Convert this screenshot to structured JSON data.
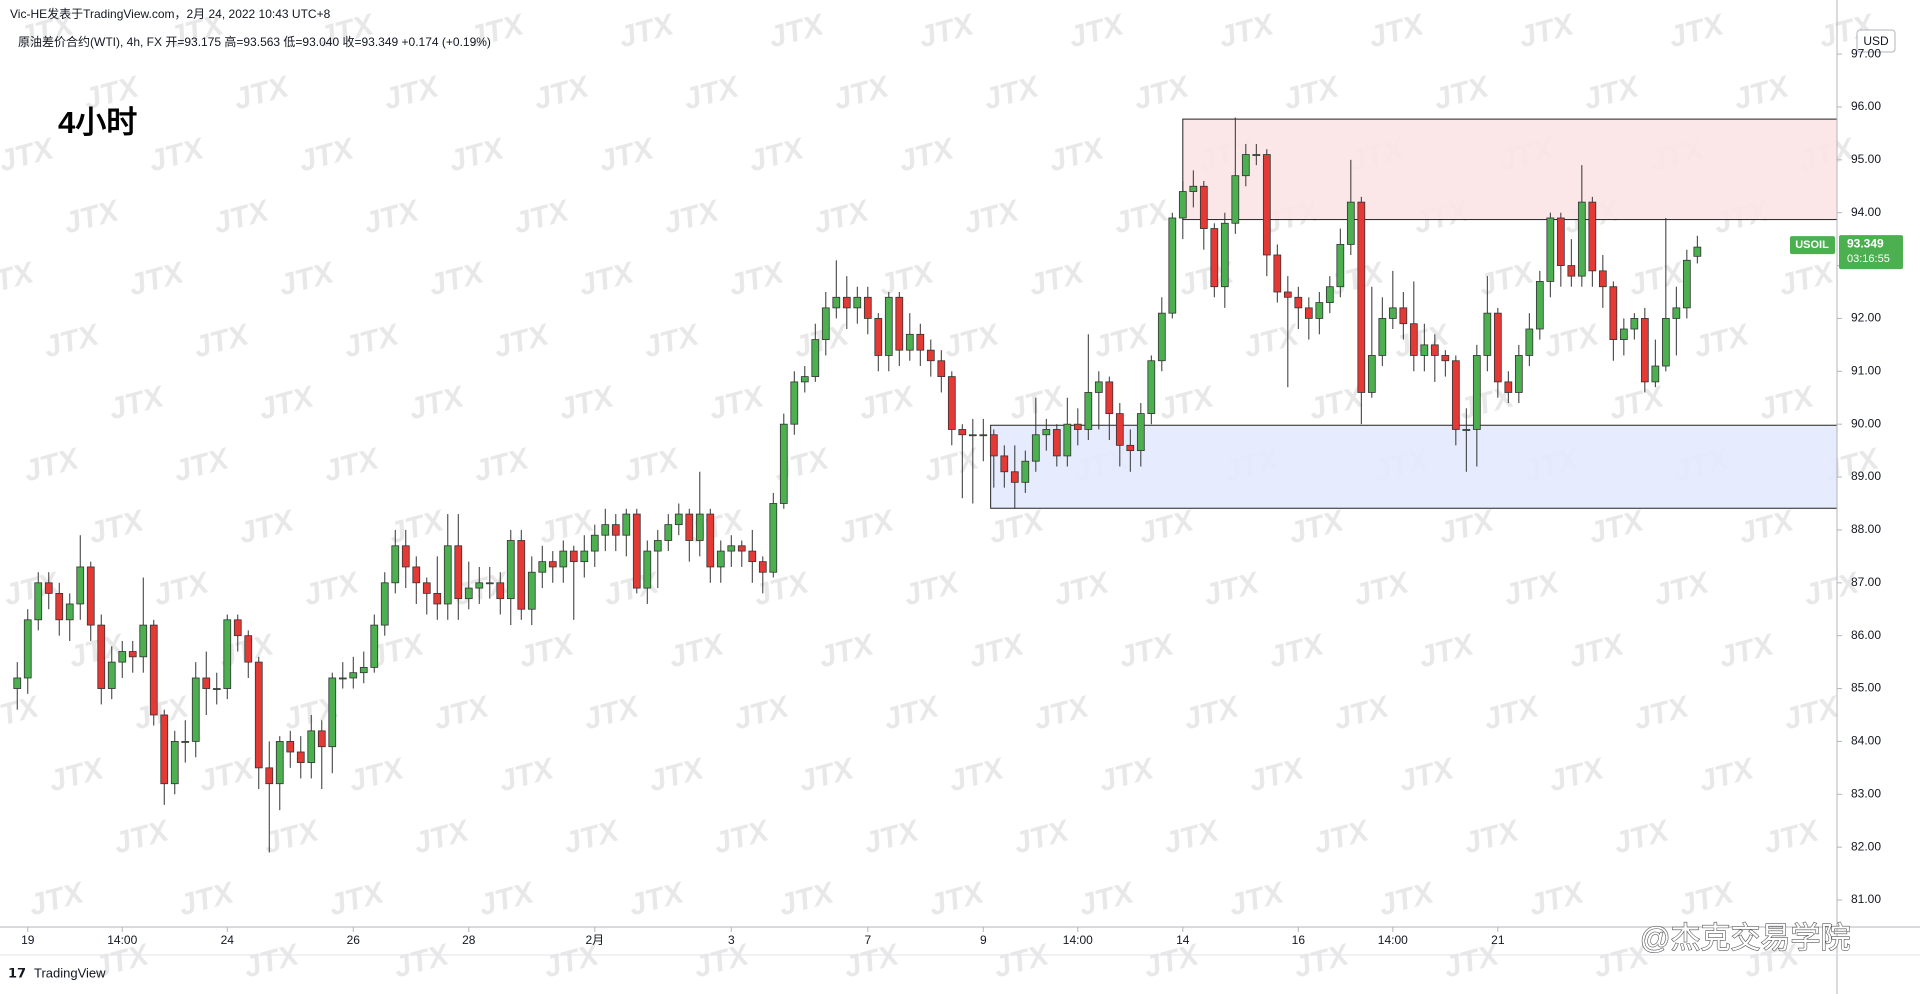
{
  "header": {
    "byline": "Vic-HE发表于TradingView.com，2月 24, 2022 10:43 UTC+8",
    "info": "原油差价合约(WTI), 4h, FX  开=93.175  高=93.563  低=93.040  收=93.349  +0.174 (+0.19%)"
  },
  "chart_data": {
    "type": "candlestick",
    "title": "4小时",
    "currency": "USD",
    "up_color": "#4caf50",
    "down_color": "#e53935",
    "xlim": [
      -0.5,
      173.3
    ],
    "ylim": [
      80.49,
      97.55
    ],
    "xticks": [
      {
        "value": 1,
        "label": "19"
      },
      {
        "value": 10,
        "label": "14:00"
      },
      {
        "value": 20,
        "label": "24"
      },
      {
        "value": 32,
        "label": "26"
      },
      {
        "value": 43,
        "label": "28"
      },
      {
        "value": 55,
        "label": "2月"
      },
      {
        "value": 68,
        "label": "3"
      },
      {
        "value": 81,
        "label": "7"
      },
      {
        "value": 92,
        "label": "9"
      },
      {
        "value": 101,
        "label": "14:00"
      },
      {
        "value": 111,
        "label": "14"
      },
      {
        "value": 122,
        "label": "16"
      },
      {
        "value": 131,
        "label": "14:00"
      },
      {
        "value": 141,
        "label": "21"
      }
    ],
    "yticks": [
      {
        "value": 81,
        "label": "81.00"
      },
      {
        "value": 82,
        "label": "82.00"
      },
      {
        "value": 83,
        "label": "83.00"
      },
      {
        "value": 84,
        "label": "84.00"
      },
      {
        "value": 85,
        "label": "85.00"
      },
      {
        "value": 86,
        "label": "86.00"
      },
      {
        "value": 87,
        "label": "87.00"
      },
      {
        "value": 88,
        "label": "88.00"
      },
      {
        "value": 89,
        "label": "89.00"
      },
      {
        "value": 90,
        "label": "90.00"
      },
      {
        "value": 91,
        "label": "91.00"
      },
      {
        "value": 92,
        "label": "92.00"
      },
      {
        "value": 93,
        "label": "93.00"
      },
      {
        "value": 94,
        "label": "94.00"
      },
      {
        "value": 95,
        "label": "95.00"
      },
      {
        "value": 96,
        "label": "96.00"
      },
      {
        "value": 97,
        "label": "97.00"
      }
    ],
    "zones": [
      {
        "from": 111,
        "low": 93.87,
        "high": 95.77,
        "color": "#fbe3e6"
      },
      {
        "from": 92.7,
        "low": 88.41,
        "high": 89.98,
        "color": "#e3e9fd"
      }
    ],
    "last_price": {
      "name": "USOIL",
      "value": 93.349,
      "countdown": "03:16:55",
      "color": "#4caf50"
    },
    "ohlc": [
      [
        85,
        85.5,
        84.6,
        85.2
      ],
      [
        85.2,
        86.5,
        84.9,
        86.3
      ],
      [
        86.3,
        87.2,
        86.1,
        87
      ],
      [
        87,
        87.2,
        86.5,
        86.8
      ],
      [
        86.8,
        87,
        86,
        86.3
      ],
      [
        86.3,
        86.8,
        85.9,
        86.6
      ],
      [
        86.6,
        87.9,
        86.3,
        87.3
      ],
      [
        87.3,
        87.4,
        85.9,
        86.2
      ],
      [
        86.2,
        86.4,
        84.7,
        85
      ],
      [
        85,
        85.8,
        84.8,
        85.5
      ],
      [
        85.5,
        85.9,
        85.2,
        85.7
      ],
      [
        85.7,
        85.9,
        85.3,
        85.6
      ],
      [
        85.6,
        87.1,
        85.3,
        86.2
      ],
      [
        86.2,
        86.3,
        84.3,
        84.5
      ],
      [
        84.5,
        84.6,
        82.8,
        83.2
      ],
      [
        83.2,
        84.2,
        83,
        84
      ],
      [
        84,
        84.4,
        83.6,
        84
      ],
      [
        84,
        85.5,
        83.7,
        85.2
      ],
      [
        85.2,
        85.7,
        84.5,
        85
      ],
      [
        85,
        85.3,
        84.7,
        85
      ],
      [
        85,
        86.4,
        84.8,
        86.3
      ],
      [
        86.3,
        86.4,
        85.7,
        86
      ],
      [
        86,
        86.1,
        85.2,
        85.5
      ],
      [
        85.5,
        85.6,
        83.1,
        83.5
      ],
      [
        83.5,
        84,
        81.9,
        83.2
      ],
      [
        83.2,
        84.1,
        82.7,
        84
      ],
      [
        84,
        84.2,
        83.5,
        83.8
      ],
      [
        83.8,
        84.1,
        83.3,
        83.6
      ],
      [
        83.6,
        84.5,
        83.3,
        84.2
      ],
      [
        84.2,
        84.4,
        83.1,
        83.9
      ],
      [
        83.9,
        85.3,
        83.4,
        85.2
      ],
      [
        85.2,
        85.5,
        85,
        85.2
      ],
      [
        85.2,
        85.6,
        85,
        85.3
      ],
      [
        85.3,
        85.7,
        85.1,
        85.4
      ],
      [
        85.4,
        86.4,
        85.3,
        86.2
      ],
      [
        86.2,
        87.2,
        86,
        87
      ],
      [
        87,
        88,
        86.8,
        87.7
      ],
      [
        87.7,
        88,
        86.9,
        87.3
      ],
      [
        87.3,
        87.5,
        86.6,
        87
      ],
      [
        87,
        87.1,
        86.4,
        86.8
      ],
      [
        86.8,
        87.5,
        86.3,
        86.6
      ],
      [
        86.6,
        88.3,
        86.3,
        87.7
      ],
      [
        87.7,
        88.3,
        86.3,
        86.7
      ],
      [
        86.7,
        87.4,
        86.5,
        86.9
      ],
      [
        86.9,
        87.3,
        86.6,
        87
      ],
      [
        87,
        87.3,
        86.7,
        87
      ],
      [
        87,
        87.2,
        86.4,
        86.7
      ],
      [
        86.7,
        88,
        86.2,
        87.8
      ],
      [
        87.8,
        88,
        86.3,
        86.5
      ],
      [
        86.5,
        87.5,
        86.2,
        87.2
      ],
      [
        87.2,
        87.7,
        86.9,
        87.4
      ],
      [
        87.4,
        87.6,
        87,
        87.3
      ],
      [
        87.3,
        87.8,
        87,
        87.6
      ],
      [
        87.6,
        87.7,
        86.3,
        87.4
      ],
      [
        87.4,
        87.9,
        87.1,
        87.6
      ],
      [
        87.6,
        88.1,
        87.3,
        87.9
      ],
      [
        87.9,
        88.4,
        87.6,
        88.1
      ],
      [
        88.1,
        88.3,
        87.6,
        87.9
      ],
      [
        87.9,
        88.4,
        87.5,
        88.3
      ],
      [
        88.3,
        88.4,
        86.8,
        86.9
      ],
      [
        86.9,
        87.8,
        86.6,
        87.6
      ],
      [
        87.6,
        88,
        86.9,
        87.8
      ],
      [
        87.8,
        88.3,
        87.6,
        88.1
      ],
      [
        88.1,
        88.5,
        87.9,
        88.3
      ],
      [
        88.3,
        88.4,
        87.4,
        87.8
      ],
      [
        87.8,
        89.1,
        87.5,
        88.3
      ],
      [
        88.3,
        88.4,
        87,
        87.3
      ],
      [
        87.3,
        87.8,
        87,
        87.6
      ],
      [
        87.6,
        87.9,
        87.3,
        87.7
      ],
      [
        87.7,
        87.8,
        87.3,
        87.6
      ],
      [
        87.6,
        88,
        87,
        87.4
      ],
      [
        87.4,
        87.5,
        86.8,
        87.2
      ],
      [
        87.2,
        88.7,
        87.1,
        88.5
      ],
      [
        88.5,
        90.2,
        88.4,
        90
      ],
      [
        90,
        91,
        89.8,
        90.8
      ],
      [
        90.8,
        91.1,
        90.6,
        90.9
      ],
      [
        90.9,
        91.9,
        90.8,
        91.6
      ],
      [
        91.6,
        92.5,
        91.3,
        92.2
      ],
      [
        92.2,
        93.1,
        92,
        92.4
      ],
      [
        92.4,
        92.8,
        91.8,
        92.2
      ],
      [
        92.2,
        92.6,
        91.9,
        92.4
      ],
      [
        92.4,
        92.6,
        91.7,
        92
      ],
      [
        92,
        92.1,
        91,
        91.3
      ],
      [
        91.3,
        92.5,
        91,
        92.4
      ],
      [
        92.4,
        92.5,
        91.1,
        91.4
      ],
      [
        91.4,
        92.1,
        91.2,
        91.7
      ],
      [
        91.7,
        91.9,
        91.1,
        91.4
      ],
      [
        91.4,
        91.6,
        90.9,
        91.2
      ],
      [
        91.2,
        91.4,
        90.6,
        90.9
      ],
      [
        90.9,
        91,
        89.6,
        89.9
      ],
      [
        89.9,
        90,
        88.6,
        89.8
      ],
      [
        89.8,
        90.1,
        88.5,
        89.8
      ],
      [
        89.8,
        90.1,
        89.3,
        89.8
      ],
      [
        89.8,
        89.9,
        88.8,
        89.4
      ],
      [
        89.4,
        89.6,
        88.8,
        89.1
      ],
      [
        89.1,
        89.6,
        88.4,
        88.9
      ],
      [
        88.9,
        89.5,
        88.7,
        89.3
      ],
      [
        89.3,
        90.5,
        89.1,
        89.8
      ],
      [
        89.8,
        90.1,
        89.5,
        89.9
      ],
      [
        89.9,
        90,
        89.2,
        89.4
      ],
      [
        89.4,
        90.5,
        89.2,
        90
      ],
      [
        90,
        90.3,
        89.6,
        89.9
      ],
      [
        89.9,
        91.7,
        89.7,
        90.6
      ],
      [
        90.6,
        91,
        89.9,
        90.8
      ],
      [
        90.8,
        90.9,
        89.7,
        90.2
      ],
      [
        90.2,
        90.4,
        89.2,
        89.6
      ],
      [
        89.6,
        89.9,
        89.1,
        89.5
      ],
      [
        89.5,
        90.4,
        89.2,
        90.2
      ],
      [
        90.2,
        91.3,
        90,
        91.2
      ],
      [
        91.2,
        92.4,
        91,
        92.1
      ],
      [
        92.1,
        94,
        92,
        93.9
      ],
      [
        93.9,
        94.6,
        93.5,
        94.4
      ],
      [
        94.4,
        94.8,
        94.1,
        94.5
      ],
      [
        94.5,
        94.6,
        93.3,
        93.7
      ],
      [
        93.7,
        93.8,
        92.4,
        92.6
      ],
      [
        92.6,
        94,
        92.2,
        93.8
      ],
      [
        93.8,
        95.8,
        93.6,
        94.7
      ],
      [
        94.7,
        95.3,
        94.5,
        95.1
      ],
      [
        95.1,
        95.3,
        94.9,
        95.1
      ],
      [
        95.1,
        95.2,
        92.8,
        93.2
      ],
      [
        93.2,
        93.4,
        92.3,
        92.5
      ],
      [
        92.5,
        92.8,
        90.7,
        92.4
      ],
      [
        92.4,
        92.6,
        91.8,
        92.2
      ],
      [
        92.2,
        92.4,
        91.6,
        92
      ],
      [
        92,
        92.5,
        91.7,
        92.3
      ],
      [
        92.3,
        92.8,
        92.1,
        92.6
      ],
      [
        92.6,
        93.7,
        92.4,
        93.4
      ],
      [
        93.4,
        95,
        93.2,
        94.2
      ],
      [
        94.2,
        94.3,
        90,
        90.6
      ],
      [
        90.6,
        92.6,
        90.5,
        91.3
      ],
      [
        91.3,
        92.4,
        91.1,
        92
      ],
      [
        92,
        92.9,
        91.8,
        92.2
      ],
      [
        92.2,
        92.5,
        91.6,
        91.9
      ],
      [
        91.9,
        92.7,
        91,
        91.3
      ],
      [
        91.3,
        91.9,
        91,
        91.5
      ],
      [
        91.5,
        91.7,
        90.8,
        91.3
      ],
      [
        91.3,
        91.4,
        90.9,
        91.2
      ],
      [
        91.2,
        91.3,
        89.6,
        89.9
      ],
      [
        89.9,
        90.3,
        89.1,
        89.9
      ],
      [
        89.9,
        91.5,
        89.2,
        91.3
      ],
      [
        91.3,
        92.8,
        91,
        92.1
      ],
      [
        92.1,
        92.2,
        90.5,
        90.8
      ],
      [
        90.8,
        91,
        90.4,
        90.6
      ],
      [
        90.6,
        91.5,
        90.4,
        91.3
      ],
      [
        91.3,
        92.1,
        91.1,
        91.8
      ],
      [
        91.8,
        92.9,
        91.6,
        92.7
      ],
      [
        92.7,
        94,
        92.4,
        93.9
      ],
      [
        93.9,
        94,
        92.6,
        93
      ],
      [
        93,
        93.5,
        92.6,
        92.8
      ],
      [
        92.8,
        94.9,
        92.6,
        94.2
      ],
      [
        94.2,
        94.3,
        92.6,
        92.9
      ],
      [
        92.9,
        93.2,
        92.2,
        92.6
      ],
      [
        92.6,
        92.7,
        91.2,
        91.6
      ],
      [
        91.6,
        92,
        91.3,
        91.8
      ],
      [
        91.8,
        92.1,
        91.6,
        92
      ],
      [
        92,
        92.2,
        90.6,
        90.8
      ],
      [
        90.8,
        91.6,
        90.7,
        91.1
      ],
      [
        91.1,
        93.9,
        91,
        92
      ],
      [
        92,
        92.6,
        91.3,
        92.2
      ],
      [
        92.2,
        93.3,
        92,
        93.1
      ],
      [
        93.175,
        93.563,
        93.04,
        93.349
      ]
    ]
  },
  "watermark": "JTX",
  "footer": {
    "brand": "TradingView",
    "credit": "@杰克交易学院"
  }
}
